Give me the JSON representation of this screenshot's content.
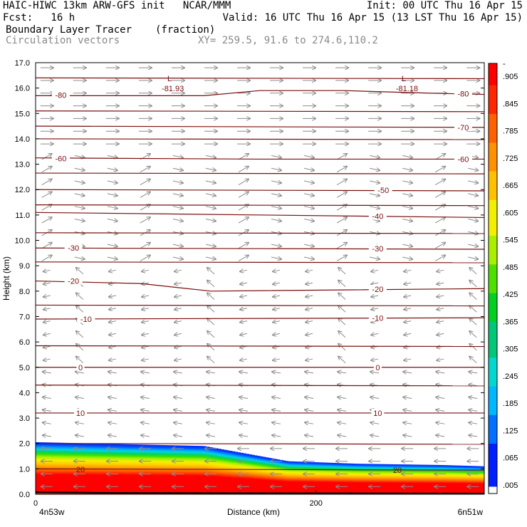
{
  "header": {
    "line1_left": "HAIC-HIWC 13km ARW-GFS init   NCAR/MMM",
    "line1_right": "Init: 00 UTC Thu 16 Apr 15",
    "line2_left": "Fcst:   16 h",
    "line2_right": "Valid: 16 UTC Thu 16 Apr 15 (13 LST Thu 16 Apr 15)",
    "line3_left": "Boundary Layer Tracer",
    "line3_unit": "(fraction)",
    "line4_left": "Circulation vectors",
    "line4_right": "XY= 259.5, 91.6 to 274.6,110.2"
  },
  "colors": {
    "contour": "#7a0e0e",
    "vector": "#8c8c8c",
    "colorbar": [
      "#ffffff",
      "#0020ff",
      "#0070ff",
      "#00b8ff",
      "#00d8d0",
      "#00c878",
      "#00d020",
      "#50e000",
      "#a8f000",
      "#f0f000",
      "#ffc000",
      "#ff9000",
      "#ff6000",
      "#ff2800",
      "#ff0000"
    ]
  },
  "chart_data": {
    "type": "cross-section",
    "xlabel": "Distance (km)",
    "ylabel": "Height (km)",
    "xlim": [
      0,
      320
    ],
    "ylim": [
      0.0,
      17.0
    ],
    "x_ticks": [
      "0",
      "200"
    ],
    "x_end_labels": [
      "4n53w",
      "6n51w"
    ],
    "y_ticks": [
      "0.0",
      "1.0",
      "2.0",
      "3.0",
      "4.0",
      "5.0",
      "6.0",
      "7.0",
      "8.0",
      "9.0",
      "10.0",
      "11.0",
      "12.0",
      "13.0",
      "14.0",
      "15.0",
      "16.0",
      "17.0"
    ],
    "colorbar_labels": [
      ".005",
      ".065",
      ".125",
      ".185",
      ".245",
      ".305",
      ".365",
      ".425",
      ".485",
      ".545",
      ".605",
      ".665",
      ".725",
      ".785",
      ".845",
      ".905",
      "-"
    ],
    "tracer_top_km": [
      [
        0,
        2.05
      ],
      [
        40,
        2.0
      ],
      [
        120,
        1.9
      ],
      [
        150,
        1.6
      ],
      [
        180,
        1.3
      ],
      [
        230,
        1.2
      ],
      [
        290,
        1.15
      ],
      [
        320,
        1.1
      ]
    ],
    "temperature_contours": [
      {
        "label": "-80",
        "points": [
          [
            0,
            15.7
          ],
          [
            120,
            15.7
          ],
          [
            160,
            15.9
          ],
          [
            220,
            15.9
          ],
          [
            280,
            15.8
          ],
          [
            320,
            15.75
          ]
        ]
      },
      {
        "label": "-70",
        "points": [
          [
            0,
            14.5
          ],
          [
            320,
            14.45
          ]
        ]
      },
      {
        "label": "-60",
        "points": [
          [
            0,
            13.25
          ],
          [
            160,
            13.2
          ],
          [
            320,
            13.2
          ]
        ]
      },
      {
        "label": "-50",
        "points": [
          [
            0,
            12.0
          ],
          [
            320,
            11.95
          ]
        ]
      },
      {
        "label": "-40",
        "points": [
          [
            0,
            11.1
          ],
          [
            320,
            10.9
          ]
        ]
      },
      {
        "label": "-30",
        "points": [
          [
            0,
            9.7
          ],
          [
            320,
            9.65
          ]
        ]
      },
      {
        "label": "-20",
        "points": [
          [
            0,
            8.4
          ],
          [
            75,
            8.3
          ],
          [
            125,
            8.0
          ],
          [
            320,
            8.1
          ]
        ]
      },
      {
        "label": "-10",
        "points": [
          [
            0,
            6.9
          ],
          [
            320,
            6.95
          ]
        ]
      },
      {
        "label": "0",
        "points": [
          [
            0,
            5.0
          ],
          [
            320,
            5.0
          ]
        ]
      },
      {
        "label": "10",
        "points": [
          [
            0,
            3.2
          ],
          [
            320,
            3.2
          ]
        ]
      },
      {
        "label": "20",
        "points": [
          [
            0,
            1.0
          ],
          [
            320,
            0.95
          ]
        ]
      }
    ],
    "extra_contour_levels_km": [
      16.4,
      15.1,
      14.0,
      12.65,
      11.4,
      10.3,
      9.15,
      7.45,
      5.85,
      4.3,
      2.0
    ],
    "low_markers": [
      {
        "label": "L",
        "value": "-81.93",
        "x": 95,
        "y": 16.05
      },
      {
        "label": "L",
        "value": "-81.18",
        "x": 262,
        "y": 16.05
      }
    ],
    "contour_label_positions": [
      {
        "label": "-80",
        "x": 18,
        "y": 15.72
      },
      {
        "label": "-80",
        "x": 305,
        "y": 15.78
      },
      {
        "label": "-70",
        "x": 305,
        "y": 14.45
      },
      {
        "label": "-60",
        "x": 18,
        "y": 13.23
      },
      {
        "label": "-60",
        "x": 305,
        "y": 13.2
      },
      {
        "label": "-50",
        "x": 248,
        "y": 11.98
      },
      {
        "label": "-40",
        "x": 244,
        "y": 10.95
      },
      {
        "label": "-30",
        "x": 27,
        "y": 9.7
      },
      {
        "label": "-30",
        "x": 244,
        "y": 9.68
      },
      {
        "label": "-20",
        "x": 27,
        "y": 8.4
      },
      {
        "label": "-20",
        "x": 244,
        "y": 8.08
      },
      {
        "label": "-10",
        "x": 36,
        "y": 6.9
      },
      {
        "label": "-10",
        "x": 244,
        "y": 6.95
      },
      {
        "label": "0",
        "x": 32,
        "y": 5.0
      },
      {
        "label": "0",
        "x": 244,
        "y": 5.0
      },
      {
        "label": "10",
        "x": 32,
        "y": 3.2
      },
      {
        "label": "10",
        "x": 244,
        "y": 3.2
      },
      {
        "label": "20",
        "x": 32,
        "y": 0.98
      },
      {
        "label": "20",
        "x": 258,
        "y": 0.96
      }
    ]
  }
}
